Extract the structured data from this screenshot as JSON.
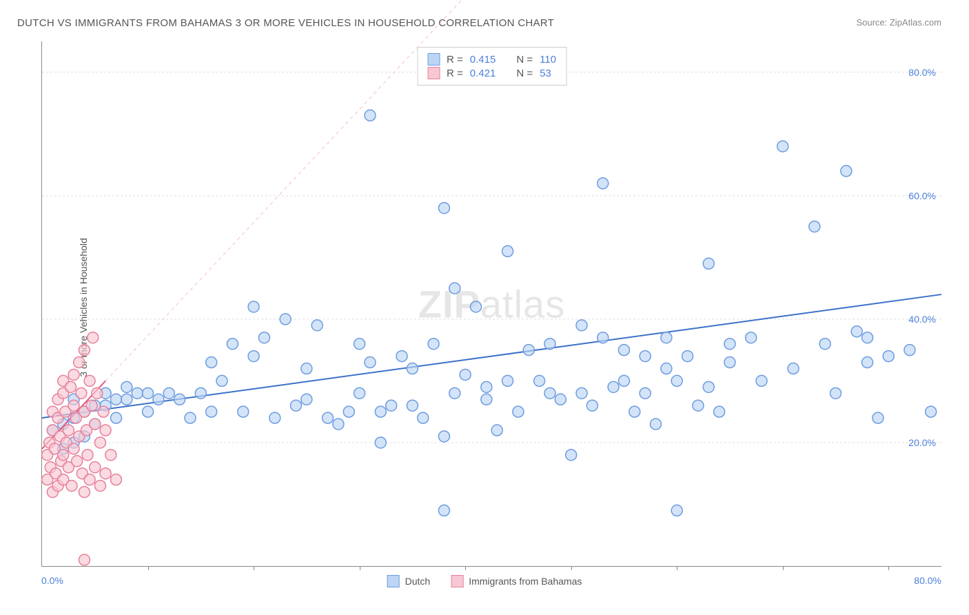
{
  "title": "DUTCH VS IMMIGRANTS FROM BAHAMAS 3 OR MORE VEHICLES IN HOUSEHOLD CORRELATION CHART",
  "source_label": "Source: ",
  "source_name": "ZipAtlas.com",
  "y_axis_label": "3 or more Vehicles in Household",
  "watermark_bold": "ZIP",
  "watermark_light": "atlas",
  "chart": {
    "type": "scatter",
    "background_color": "#ffffff",
    "grid_color": "#dddddd",
    "axis_color": "#888888",
    "text_color": "#555555",
    "value_color": "#4a7fd8",
    "xlim": [
      0,
      85
    ],
    "ylim": [
      0,
      85
    ],
    "y_ticks": [
      20,
      40,
      60,
      80
    ],
    "y_tick_labels": [
      "20.0%",
      "40.0%",
      "60.0%",
      "80.0%"
    ],
    "x_origin_label": "0.0%",
    "x_max_label": "80.0%",
    "x_tick_positions": [
      10,
      20,
      30,
      40,
      50,
      60,
      70,
      80
    ],
    "marker_radius": 8,
    "marker_stroke_width": 1.5,
    "trendline_width": 2,
    "series": [
      {
        "name": "Dutch",
        "fill_color": "#bcd5f5",
        "stroke_color": "#6d9be0",
        "line_color": "#3b71c9",
        "r_value": "0.415",
        "n_value": "110",
        "trend_start": [
          0,
          24
        ],
        "trend_end": [
          85,
          44
        ],
        "extrapolate_dash": false,
        "points": [
          [
            1,
            22
          ],
          [
            2,
            23
          ],
          [
            2,
            19
          ],
          [
            3,
            24
          ],
          [
            3,
            20
          ],
          [
            3,
            27
          ],
          [
            4,
            25
          ],
          [
            4,
            21
          ],
          [
            5,
            26
          ],
          [
            5,
            23
          ],
          [
            6,
            26
          ],
          [
            6,
            28
          ],
          [
            7,
            27
          ],
          [
            7,
            24
          ],
          [
            8,
            27
          ],
          [
            8,
            29
          ],
          [
            9,
            28
          ],
          [
            10,
            28
          ],
          [
            10,
            25
          ],
          [
            11,
            27
          ],
          [
            12,
            28
          ],
          [
            13,
            27
          ],
          [
            14,
            24
          ],
          [
            15,
            28
          ],
          [
            16,
            25
          ],
          [
            16,
            33
          ],
          [
            17,
            30
          ],
          [
            18,
            36
          ],
          [
            19,
            25
          ],
          [
            20,
            34
          ],
          [
            20,
            42
          ],
          [
            21,
            37
          ],
          [
            22,
            24
          ],
          [
            23,
            40
          ],
          [
            24,
            26
          ],
          [
            25,
            32
          ],
          [
            25,
            27
          ],
          [
            26,
            39
          ],
          [
            27,
            24
          ],
          [
            28,
            23
          ],
          [
            29,
            25
          ],
          [
            30,
            28
          ],
          [
            30,
            36
          ],
          [
            31,
            73
          ],
          [
            31,
            33
          ],
          [
            32,
            25
          ],
          [
            32,
            20
          ],
          [
            33,
            26
          ],
          [
            34,
            34
          ],
          [
            35,
            26
          ],
          [
            35,
            32
          ],
          [
            36,
            24
          ],
          [
            37,
            36
          ],
          [
            38,
            58
          ],
          [
            38,
            21
          ],
          [
            38,
            9
          ],
          [
            39,
            28
          ],
          [
            39,
            45
          ],
          [
            40,
            31
          ],
          [
            41,
            42
          ],
          [
            42,
            27
          ],
          [
            42,
            29
          ],
          [
            43,
            22
          ],
          [
            44,
            30
          ],
          [
            44,
            51
          ],
          [
            45,
            25
          ],
          [
            46,
            35
          ],
          [
            47,
            30
          ],
          [
            48,
            28
          ],
          [
            48,
            36
          ],
          [
            49,
            27
          ],
          [
            50,
            18
          ],
          [
            51,
            39
          ],
          [
            51,
            28
          ],
          [
            52,
            26
          ],
          [
            53,
            37
          ],
          [
            53,
            62
          ],
          [
            54,
            29
          ],
          [
            55,
            30
          ],
          [
            55,
            35
          ],
          [
            56,
            25
          ],
          [
            57,
            34
          ],
          [
            57,
            28
          ],
          [
            58,
            23
          ],
          [
            59,
            32
          ],
          [
            59,
            37
          ],
          [
            60,
            30
          ],
          [
            60,
            9
          ],
          [
            61,
            34
          ],
          [
            62,
            26
          ],
          [
            63,
            49
          ],
          [
            63,
            29
          ],
          [
            64,
            25
          ],
          [
            65,
            36
          ],
          [
            65,
            33
          ],
          [
            67,
            37
          ],
          [
            68,
            30
          ],
          [
            70,
            68
          ],
          [
            71,
            32
          ],
          [
            73,
            55
          ],
          [
            74,
            36
          ],
          [
            75,
            28
          ],
          [
            76,
            64
          ],
          [
            77,
            38
          ],
          [
            78,
            33
          ],
          [
            78,
            37
          ],
          [
            79,
            24
          ],
          [
            80,
            34
          ],
          [
            82,
            35
          ],
          [
            84,
            25
          ]
        ]
      },
      {
        "name": "Immigrants from Bahamas",
        "fill_color": "#f7c8d3",
        "stroke_color": "#e77f9a",
        "line_color": "#e05a7e",
        "r_value": "0.421",
        "n_value": "53",
        "trend_start": [
          0,
          19
        ],
        "trend_end": [
          6,
          30
        ],
        "extrapolate_dash": true,
        "extrapolate_end": [
          42,
          96
        ],
        "points": [
          [
            0.5,
            18
          ],
          [
            0.5,
            14
          ],
          [
            0.7,
            20
          ],
          [
            0.8,
            16
          ],
          [
            1,
            22
          ],
          [
            1,
            12
          ],
          [
            1,
            25
          ],
          [
            1.2,
            19
          ],
          [
            1.3,
            15
          ],
          [
            1.5,
            24
          ],
          [
            1.5,
            27
          ],
          [
            1.5,
            13
          ],
          [
            1.7,
            21
          ],
          [
            1.8,
            17
          ],
          [
            2,
            28
          ],
          [
            2,
            30
          ],
          [
            2,
            18
          ],
          [
            2,
            14
          ],
          [
            2.2,
            25
          ],
          [
            2.3,
            20
          ],
          [
            2.5,
            22
          ],
          [
            2.5,
            16
          ],
          [
            2.7,
            29
          ],
          [
            2.8,
            13
          ],
          [
            3,
            26
          ],
          [
            3,
            31
          ],
          [
            3,
            19
          ],
          [
            3.2,
            24
          ],
          [
            3.3,
            17
          ],
          [
            3.5,
            33
          ],
          [
            3.5,
            21
          ],
          [
            3.7,
            28
          ],
          [
            3.8,
            15
          ],
          [
            4,
            25
          ],
          [
            4,
            12
          ],
          [
            4,
            35
          ],
          [
            4.2,
            22
          ],
          [
            4.3,
            18
          ],
          [
            4.5,
            30
          ],
          [
            4.5,
            14
          ],
          [
            4.7,
            26
          ],
          [
            4.8,
            37
          ],
          [
            5,
            23
          ],
          [
            5,
            16
          ],
          [
            5.2,
            28
          ],
          [
            5.5,
            20
          ],
          [
            5.5,
            13
          ],
          [
            5.8,
            25
          ],
          [
            6,
            15
          ],
          [
            6,
            22
          ],
          [
            6.5,
            18
          ],
          [
            7,
            14
          ],
          [
            4,
            1
          ]
        ]
      }
    ]
  },
  "legend_top_labels": {
    "r": "R =",
    "n": "N ="
  },
  "legend_bottom": [
    "Dutch",
    "Immigrants from Bahamas"
  ]
}
